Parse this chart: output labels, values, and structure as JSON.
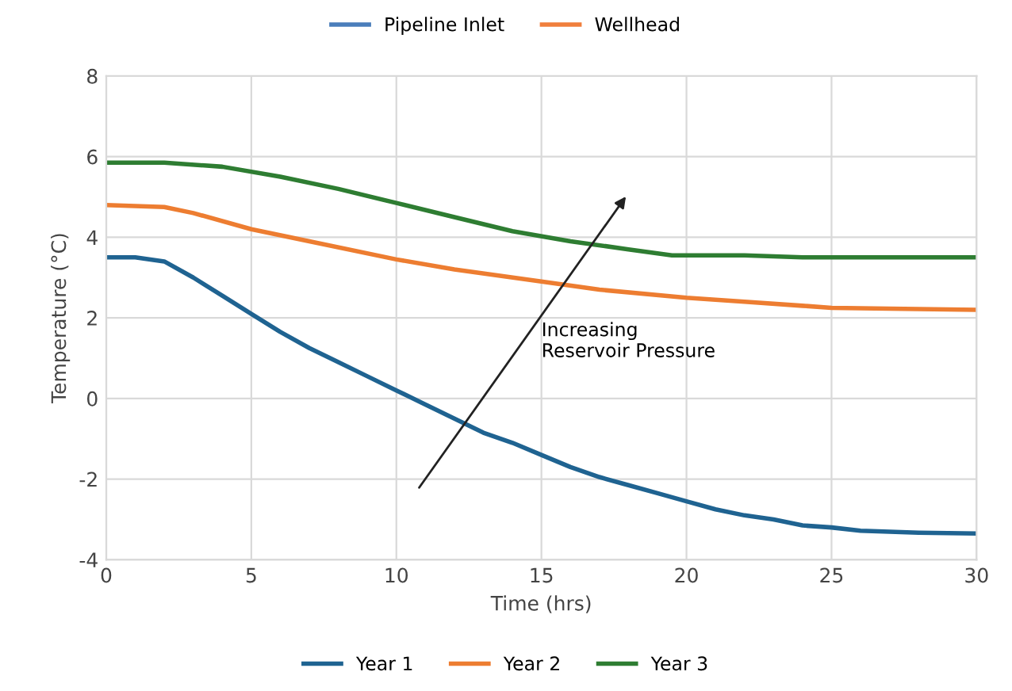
{
  "chart_data": {
    "type": "line",
    "xlabel": "Time (hrs)",
    "ylabel": "Temperature (°C)",
    "xlim": [
      0,
      30
    ],
    "xticks": [
      0,
      5,
      10,
      15,
      20,
      25,
      30
    ],
    "ylim": [
      -4,
      8
    ],
    "yticks": [
      -4,
      -2,
      0,
      2,
      4,
      6,
      8
    ],
    "grid": true,
    "legend": "bottom",
    "line_style": "solid",
    "marker": "none",
    "annotations": [
      "Increasing\nReservoir Pressure"
    ],
    "series": [
      {
        "name": "Year 1",
        "color": "#1f6391",
        "x": [
          0,
          1,
          2,
          3,
          4,
          5,
          6,
          7,
          8,
          9,
          10,
          11,
          12,
          13,
          14,
          15,
          16,
          17,
          18,
          19,
          20,
          21,
          22,
          23,
          24,
          25,
          26,
          28,
          30
        ],
        "values": [
          3.5,
          3.5,
          3.4,
          3.0,
          2.55,
          2.1,
          1.65,
          1.25,
          0.9,
          0.55,
          0.2,
          -0.15,
          -0.5,
          -0.85,
          -1.1,
          -1.4,
          -1.7,
          -1.95,
          -2.15,
          -2.35,
          -2.55,
          -2.75,
          -2.9,
          -3.0,
          -3.15,
          -3.2,
          -3.28,
          -3.33,
          -3.35
        ]
      },
      {
        "name": "Year 2",
        "color": "#ed7d31",
        "x": [
          0,
          2,
          3,
          5,
          7,
          10,
          12,
          15,
          17,
          20,
          22,
          24,
          25,
          30
        ],
        "values": [
          4.8,
          4.75,
          4.6,
          4.2,
          3.9,
          3.45,
          3.2,
          2.9,
          2.7,
          2.5,
          2.4,
          2.3,
          2.25,
          2.2
        ]
      },
      {
        "name": "Year 3",
        "color": "#2e7d32",
        "x": [
          0,
          2,
          4,
          6,
          8,
          10,
          12,
          14,
          16,
          18,
          19.5,
          22,
          24,
          30
        ],
        "values": [
          5.85,
          5.85,
          5.75,
          5.5,
          5.2,
          4.85,
          4.5,
          4.15,
          3.9,
          3.7,
          3.55,
          3.55,
          3.5,
          3.5
        ]
      },
      {
        "name": "Pipeline Inlet",
        "color": "#4a7ebb"
      },
      {
        "name": "Wellhead",
        "color": "#f07f3c"
      }
    ]
  }
}
